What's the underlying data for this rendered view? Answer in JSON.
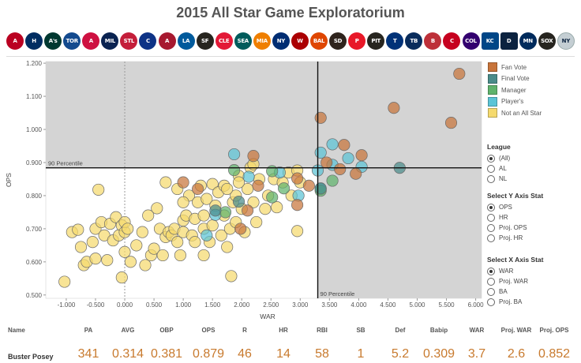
{
  "page": {
    "title": "2015 All Star Game Exploratorium"
  },
  "team_logos": [
    {
      "name": "angels-logo",
      "abbr": "A",
      "color": "#ba0021",
      "square": false
    },
    {
      "name": "astros-logo",
      "abbr": "H",
      "color": "#002d62",
      "square": false
    },
    {
      "name": "athletics-logo",
      "abbr": "A's",
      "color": "#003831",
      "square": false
    },
    {
      "name": "blue-jays-logo",
      "abbr": "TOR",
      "color": "#134a8e",
      "square": false
    },
    {
      "name": "braves-logo",
      "abbr": "A",
      "color": "#ce1141",
      "square": false
    },
    {
      "name": "brewers-logo",
      "abbr": "MIL",
      "color": "#0a2351",
      "square": false
    },
    {
      "name": "cardinals-logo",
      "abbr": "STL",
      "color": "#c41e3a",
      "square": false
    },
    {
      "name": "cubs-logo",
      "abbr": "C",
      "color": "#0e3386",
      "square": false
    },
    {
      "name": "diamondbacks-logo",
      "abbr": "A",
      "color": "#a71930",
      "square": false
    },
    {
      "name": "dodgers-logo",
      "abbr": "LA",
      "color": "#005a9c",
      "square": false
    },
    {
      "name": "giants-logo",
      "abbr": "SF",
      "color": "#27251f",
      "square": false
    },
    {
      "name": "indians-logo",
      "abbr": "CLE",
      "color": "#e31937",
      "square": false
    },
    {
      "name": "mariners-logo",
      "abbr": "SEA",
      "color": "#005c5c",
      "square": false
    },
    {
      "name": "marlins-logo",
      "abbr": "MIA",
      "color": "#ef7f00",
      "square": false
    },
    {
      "name": "mets-logo",
      "abbr": "NY",
      "color": "#002d72",
      "square": false
    },
    {
      "name": "nationals-logo",
      "abbr": "W",
      "color": "#ab0003",
      "square": false
    },
    {
      "name": "orioles-logo",
      "abbr": "BAL",
      "color": "#df4601",
      "square": false
    },
    {
      "name": "padres-logo",
      "abbr": "SD",
      "color": "#2f241d",
      "square": false
    },
    {
      "name": "phillies-logo",
      "abbr": "P",
      "color": "#e81828",
      "square": false
    },
    {
      "name": "pirates-logo",
      "abbr": "PIT",
      "color": "#27251f",
      "square": false
    },
    {
      "name": "rangers-logo",
      "abbr": "T",
      "color": "#003278",
      "square": false
    },
    {
      "name": "rays-logo",
      "abbr": "TB",
      "color": "#092c5c",
      "square": false
    },
    {
      "name": "red-sox-logo",
      "abbr": "B",
      "color": "#bd3039",
      "square": false
    },
    {
      "name": "reds-logo",
      "abbr": "C",
      "color": "#c6011f",
      "square": false
    },
    {
      "name": "rockies-logo",
      "abbr": "COL",
      "color": "#33006f",
      "square": false
    },
    {
      "name": "royals-logo",
      "abbr": "KC",
      "color": "#004687",
      "square": true
    },
    {
      "name": "tigers-logo",
      "abbr": "D",
      "color": "#0c2340",
      "square": true
    },
    {
      "name": "twins-logo",
      "abbr": "MN",
      "color": "#002b5c",
      "square": false
    },
    {
      "name": "white-sox-logo",
      "abbr": "SOX",
      "color": "#27251f",
      "square": false
    },
    {
      "name": "yankees-logo",
      "abbr": "NY",
      "color": "#c4ced3",
      "square": false
    }
  ],
  "legend": {
    "items": [
      {
        "label": "Fan Vote",
        "color": "#c8743a"
      },
      {
        "label": "Final Vote",
        "color": "#4a8c8a"
      },
      {
        "label": "Manager",
        "color": "#5fb36c"
      },
      {
        "label": "Player's",
        "color": "#5bc4d6"
      },
      {
        "label": "Not an All Star",
        "color": "#f5da6e"
      }
    ]
  },
  "filters": {
    "league": {
      "title": "League",
      "options": [
        "(All)",
        "AL",
        "NL"
      ],
      "selected": 0
    },
    "y_axis": {
      "title": "Select Y Axis Stat",
      "options": [
        "OPS",
        "HR",
        "Proj. OPS",
        "Proj. HR"
      ],
      "selected": 0
    },
    "x_axis": {
      "title": "Select X Axis Stat",
      "options": [
        "WAR",
        "Proj. WAR",
        "BA",
        "Proj. BA"
      ],
      "selected": 0
    }
  },
  "table": {
    "columns": [
      "Name",
      "PA",
      "AVG",
      "OBP",
      "OPS",
      "R",
      "HR",
      "RBI",
      "SB",
      "Def",
      "Babip",
      "WAR",
      "Proj. WAR",
      "Proj. OPS"
    ],
    "rows": [
      [
        "Buster Posey",
        "341",
        "0.314",
        "0.381",
        "0.879",
        "46",
        "14",
        "58",
        "1",
        "5.2",
        "0.309",
        "3.7",
        "2.6",
        "0.852"
      ]
    ]
  },
  "chart_data": {
    "type": "scatter",
    "xlabel": "WAR",
    "ylabel": "OPS",
    "xlim": [
      -1.35,
      6.1
    ],
    "ylim": [
      0.49,
      1.205
    ],
    "x_ticks": [
      "-1.000",
      "-0.500",
      "0.000",
      "0.500",
      "1.000",
      "1.500",
      "2.000",
      "2.500",
      "3.000",
      "3.500",
      "4.000",
      "4.500",
      "5.000",
      "5.500",
      "6.000"
    ],
    "y_ticks": [
      "0.500",
      "0.600",
      "0.700",
      "0.800",
      "0.900",
      "1.000",
      "1.100",
      "1.200"
    ],
    "reference_lines": [
      {
        "axis": "y",
        "value": 0.884,
        "label": "90 Percentile"
      },
      {
        "axis": "x",
        "value": 3.3,
        "label": "90 Percentile"
      }
    ],
    "zero_line": 0,
    "series": [
      {
        "name": "Fan Vote",
        "color": "#c8743a",
        "points": [
          [
            5.72,
            1.168
          ],
          [
            5.58,
            1.02
          ],
          [
            4.6,
            1.065
          ],
          [
            3.35,
            1.035
          ],
          [
            3.75,
            0.953
          ],
          [
            4.05,
            0.922
          ],
          [
            3.45,
            0.9
          ],
          [
            3.95,
            0.866
          ],
          [
            3.68,
            0.88
          ],
          [
            2.95,
            0.852
          ],
          [
            3.15,
            0.83
          ],
          [
            2.2,
            0.92
          ],
          [
            1.0,
            0.84
          ],
          [
            1.25,
            0.82
          ],
          [
            2.28,
            0.83
          ],
          [
            2.95,
            0.772
          ],
          [
            2.1,
            0.755
          ],
          [
            1.98,
            0.7
          ]
        ]
      },
      {
        "name": "Final Vote",
        "color": "#4a8c8a",
        "points": [
          [
            4.7,
            0.884
          ],
          [
            3.35,
            0.822
          ],
          [
            1.95,
            0.782
          ],
          [
            1.55,
            0.755
          ]
        ]
      },
      {
        "name": "Manager",
        "color": "#5fb36c",
        "points": [
          [
            1.87,
            0.877
          ],
          [
            2.52,
            0.874
          ],
          [
            2.72,
            0.822
          ],
          [
            3.55,
            0.845
          ],
          [
            2.52,
            0.795
          ],
          [
            3.35,
            0.815
          ],
          [
            1.72,
            0.75
          ]
        ]
      },
      {
        "name": "Player's",
        "color": "#5bc4d6",
        "points": [
          [
            1.87,
            0.925
          ],
          [
            3.35,
            0.93
          ],
          [
            3.55,
            0.955
          ],
          [
            3.55,
            0.893
          ],
          [
            3.82,
            0.913
          ],
          [
            4.05,
            0.887
          ],
          [
            2.12,
            0.857
          ],
          [
            2.65,
            0.87
          ],
          [
            3.3,
            0.876
          ],
          [
            3.35,
            0.82
          ],
          [
            2.97,
            0.8
          ],
          [
            1.55,
            0.742
          ],
          [
            1.4,
            0.68
          ]
        ]
      },
      {
        "name": "Not an All Star",
        "color": "#f5da6e",
        "points": [
          [
            -1.03,
            0.54
          ],
          [
            -0.9,
            0.69
          ],
          [
            -0.8,
            0.697
          ],
          [
            -0.75,
            0.645
          ],
          [
            -0.7,
            0.59
          ],
          [
            -0.65,
            0.6
          ],
          [
            -0.55,
            0.66
          ],
          [
            -0.5,
            0.61
          ],
          [
            -0.5,
            0.7
          ],
          [
            -0.45,
            0.818
          ],
          [
            -0.4,
            0.72
          ],
          [
            -0.35,
            0.68
          ],
          [
            -0.3,
            0.605
          ],
          [
            -0.25,
            0.715
          ],
          [
            -0.2,
            0.665
          ],
          [
            -0.15,
            0.735
          ],
          [
            -0.1,
            0.68
          ],
          [
            -0.05,
            0.71
          ],
          [
            -0.05,
            0.553
          ],
          [
            0.0,
            0.63
          ],
          [
            0.0,
            0.69
          ],
          [
            0.0,
            0.72
          ],
          [
            0.05,
            0.7
          ],
          [
            0.2,
            0.65
          ],
          [
            0.3,
            0.69
          ],
          [
            0.35,
            0.59
          ],
          [
            0.45,
            0.62
          ],
          [
            0.5,
            0.64
          ],
          [
            0.55,
            0.762
          ],
          [
            0.6,
            0.7
          ],
          [
            0.65,
            0.62
          ],
          [
            0.7,
            0.675
          ],
          [
            0.75,
            0.69
          ],
          [
            0.7,
            0.84
          ],
          [
            0.8,
            0.68
          ],
          [
            0.85,
            0.7
          ],
          [
            0.9,
            0.66
          ],
          [
            0.95,
            0.62
          ],
          [
            1.0,
            0.69
          ],
          [
            1.0,
            0.725
          ],
          [
            1.05,
            0.74
          ],
          [
            1.1,
            0.8
          ],
          [
            1.15,
            0.68
          ],
          [
            1.2,
            0.73
          ],
          [
            1.25,
            0.78
          ],
          [
            1.3,
            0.83
          ],
          [
            1.35,
            0.7
          ],
          [
            1.35,
            0.74
          ],
          [
            1.4,
            0.79
          ],
          [
            1.45,
            0.66
          ],
          [
            1.5,
            0.71
          ],
          [
            1.5,
            0.835
          ],
          [
            1.55,
            0.77
          ],
          [
            1.6,
            0.81
          ],
          [
            1.65,
            0.68
          ],
          [
            1.7,
            0.74
          ],
          [
            1.7,
            0.83
          ],
          [
            1.75,
            0.645
          ],
          [
            1.8,
            0.7
          ],
          [
            1.82,
            0.557
          ],
          [
            1.85,
            0.78
          ],
          [
            1.9,
            0.72
          ],
          [
            1.9,
            0.8
          ],
          [
            1.95,
            0.86
          ],
          [
            2.0,
            0.76
          ],
          [
            2.05,
            0.69
          ],
          [
            2.1,
            0.82
          ],
          [
            2.15,
            0.885
          ],
          [
            2.2,
            0.78
          ],
          [
            2.25,
            0.72
          ],
          [
            2.3,
            0.85
          ],
          [
            2.4,
            0.76
          ],
          [
            2.45,
            0.8
          ],
          [
            2.55,
            0.85
          ],
          [
            2.6,
            0.765
          ],
          [
            2.7,
            0.84
          ],
          [
            2.8,
            0.87
          ],
          [
            2.85,
            0.8
          ],
          [
            2.95,
            0.693
          ],
          [
            3.0,
            0.84
          ],
          [
            2.95,
            0.876
          ],
          [
            2.2,
            0.895
          ],
          [
            1.95,
            0.84
          ],
          [
            1.75,
            0.82
          ],
          [
            1.0,
            0.78
          ],
          [
            0.9,
            0.82
          ],
          [
            0.4,
            0.74
          ],
          [
            1.35,
            0.62
          ],
          [
            1.2,
            0.66
          ],
          [
            0.1,
            0.6
          ]
        ]
      }
    ]
  }
}
